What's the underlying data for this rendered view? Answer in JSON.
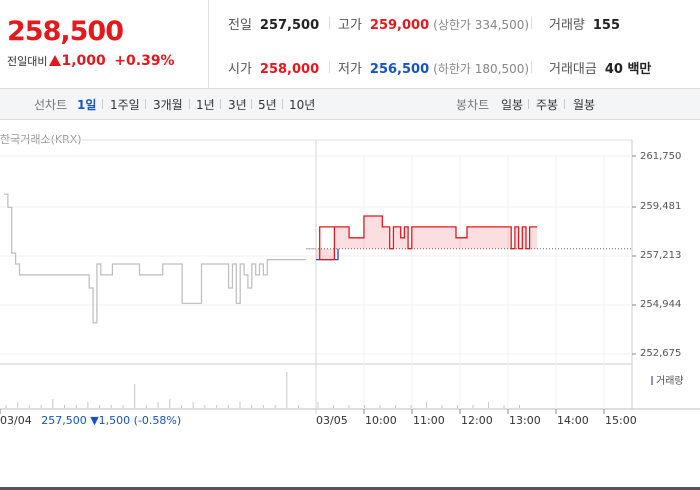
{
  "quote": {
    "price": "258,500",
    "change_label": "전일대비",
    "change_value": "1,000",
    "change_pct": "+0.39%"
  },
  "stats": {
    "prev": {
      "label": "전일",
      "value": "257,500"
    },
    "high": {
      "label": "고가",
      "value": "259,000",
      "sub": "(상한가 334,500)"
    },
    "volume": {
      "label": "거래량",
      "value": "155"
    },
    "open": {
      "label": "시가",
      "value": "258,000"
    },
    "low": {
      "label": "저가",
      "value": "256,500",
      "sub": "(하한가 180,500)"
    },
    "amount": {
      "label": "거래대금",
      "value": "40 백만"
    }
  },
  "toolbar": {
    "line_label": "선차트",
    "periods": [
      "1일",
      "1주일",
      "3개월",
      "1년",
      "3년",
      "5년",
      "10년"
    ],
    "active_period": "1일",
    "candle_label": "봉차트",
    "candles": [
      "일봉",
      "주봉",
      "월봉"
    ]
  },
  "chart": {
    "source": "한국거래소(KRX)",
    "volume_legend": "거래량",
    "prev_day": {
      "date": "03/04",
      "close": "257,500",
      "change": "▼1,500",
      "pct": "(-0.58%)"
    },
    "colors": {
      "up": "#e5181e",
      "down": "#1554c2",
      "prev": "#bdbdbd",
      "volume": "#9d8ec7"
    }
  },
  "chart_data": {
    "type": "line",
    "y_ticks": [
      "261,750",
      "259,481",
      "257,213",
      "254,944",
      "252,675"
    ],
    "ylim": [
      252675,
      261750
    ],
    "x_ticks": [
      "03/04",
      "03/05",
      "10:00",
      "11:00",
      "12:00",
      "13:00",
      "14:00",
      "15:00"
    ],
    "baseline": 257500,
    "series": [
      {
        "values": [
          260000,
          259400,
          257300,
          256800,
          256300,
          256300,
          256300,
          256300,
          256300,
          256300,
          256300,
          256300,
          256300,
          256300,
          256300,
          256300,
          256300,
          256300,
          256300,
          256300,
          256300,
          256300,
          255700,
          254100,
          256800,
          256300,
          256300,
          256300,
          256800,
          256800,
          256800,
          256800,
          256800,
          256800,
          256800,
          256300,
          256300,
          256300,
          256300,
          256300,
          256300,
          256800,
          256800,
          256800,
          256800,
          256800,
          255000,
          255000,
          255000,
          255000,
          255000,
          256800,
          256800,
          256800,
          256800,
          256800,
          256800,
          256800,
          255700,
          256800,
          255000,
          256800,
          256300,
          255700,
          256800,
          256300,
          256800,
          256300,
          257000,
          257000,
          257000,
          257000,
          257000,
          257000,
          257000,
          257000,
          257000,
          257000,
          257000
        ]
      },
      {
        "values": [
          257000,
          257000,
          257000,
          257000,
          257000,
          258500,
          258500,
          258500,
          258500,
          258000,
          258000,
          258000,
          258000,
          259000,
          259000,
          259000,
          259000,
          259000,
          258500,
          258500,
          257500,
          258500,
          258500,
          258000,
          258500,
          257500,
          258500,
          258500,
          258500,
          258500,
          258500,
          258500,
          258500,
          258500,
          258500,
          258500,
          258500,
          258500,
          258000,
          258000,
          258000,
          258500,
          258500,
          258500,
          258500,
          258500,
          258500,
          258500,
          258500,
          258500,
          258500,
          258500,
          258500,
          257500,
          258500,
          257500,
          258500,
          257500,
          258500,
          258500,
          258500
        ]
      }
    ],
    "volume": [
      1,
      2,
      1,
      1,
      3,
      1,
      1,
      2,
      1,
      1,
      1,
      8,
      1,
      2,
      3,
      1,
      2,
      1,
      1,
      1,
      2,
      1,
      1,
      1,
      12,
      1,
      2,
      1,
      1,
      1,
      1,
      1,
      1,
      2,
      1,
      1,
      1,
      2,
      1,
      1
    ]
  }
}
